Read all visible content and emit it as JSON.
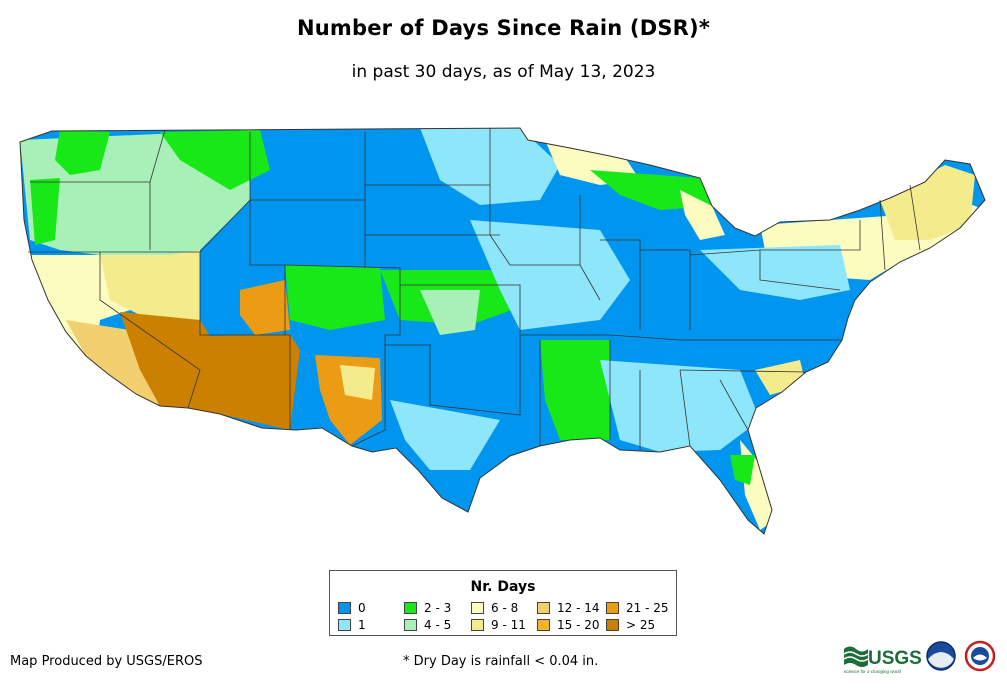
{
  "title": "Number of Days Since Rain (DSR)*",
  "subtitle": "in past 30 days, as of May 13, 2023",
  "legend": {
    "title": "Nr. Days",
    "items": [
      {
        "label": "0",
        "color": "#0096f0"
      },
      {
        "label": "1",
        "color": "#8ee6fa"
      },
      {
        "label": "2 - 3",
        "color": "#18e818"
      },
      {
        "label": "4 - 5",
        "color": "#a8f0b8"
      },
      {
        "label": "6 - 8",
        "color": "#fcfcc0"
      },
      {
        "label": "9 - 11",
        "color": "#f4ec8c"
      },
      {
        "label": "12 - 14",
        "color": "#f2d070"
      },
      {
        "label": "15 - 20",
        "color": "#f4b428"
      },
      {
        "label": "21 - 25",
        "color": "#ec9c14"
      },
      {
        "label": "> 25",
        "color": "#cc8000"
      }
    ]
  },
  "credit": "Map Produced by USGS/EROS",
  "footnote": "* Dry Day is rainfall < 0.04 in.",
  "logos": {
    "usgs_text": "USGS",
    "usgs_tagline": "science for a changing world",
    "agencies": [
      "usgs-logo",
      "noaa-logo",
      "national-weather-service-logo"
    ]
  }
}
